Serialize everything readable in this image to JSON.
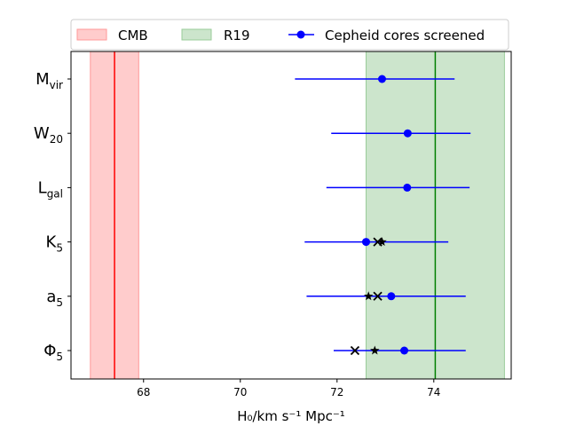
{
  "chart_data": {
    "type": "errorbar",
    "xlabel": "H₀/km s⁻¹ Mpc⁻¹",
    "ylabel": "",
    "xlim": [
      66.5,
      75.6
    ],
    "xticks": [
      68,
      70,
      72,
      74
    ],
    "categories": [
      {
        "base": "M",
        "sub": "vir"
      },
      {
        "base": "W",
        "sub": "20"
      },
      {
        "base": "L",
        "sub": "gal"
      },
      {
        "base": "K",
        "sub": "5"
      },
      {
        "base": "a",
        "sub": "5"
      },
      {
        "base": "Φ",
        "sub": "5"
      }
    ],
    "bands": [
      {
        "name": "CMB",
        "center": 67.4,
        "lo": 66.9,
        "hi": 67.9,
        "fill": "#ffcccc",
        "edge": "#ff9999",
        "line": "#ff0000"
      },
      {
        "name": "R19",
        "center": 74.03,
        "lo": 72.6,
        "hi": 75.46,
        "fill": "#cce5cc",
        "edge": "#99cc99",
        "line": "#008000"
      }
    ],
    "series": [
      {
        "name": "Cepheid cores screened",
        "color": "#0000ff",
        "points": [
          {
            "category": "Mvir",
            "value": 72.93,
            "lo": 71.13,
            "hi": 74.43
          },
          {
            "category": "W20",
            "value": 73.46,
            "lo": 71.88,
            "hi": 74.76
          },
          {
            "category": "Lgal",
            "value": 73.45,
            "lo": 71.78,
            "hi": 74.74
          },
          {
            "category": "K5",
            "value": 72.6,
            "lo": 71.33,
            "hi": 74.3
          },
          {
            "category": "a5",
            "value": 73.12,
            "lo": 71.37,
            "hi": 74.66
          },
          {
            "category": "Phi5",
            "value": 73.39,
            "lo": 71.93,
            "hi": 74.66
          }
        ]
      },
      {
        "name": "cross markers",
        "marker": "x",
        "color": "#000000",
        "points": [
          {
            "category": "K5",
            "value": 72.84
          },
          {
            "category": "a5",
            "value": 72.84
          },
          {
            "category": "Phi5",
            "value": 72.37
          }
        ]
      },
      {
        "name": "star markers",
        "marker": "*",
        "color": "#000000",
        "points": [
          {
            "category": "K5",
            "value": 72.93
          },
          {
            "category": "a5",
            "value": 72.65
          },
          {
            "category": "Phi5",
            "value": 72.78
          }
        ]
      }
    ],
    "legend": {
      "placement": "top",
      "entries": [
        "CMB",
        "R19",
        "Cepheid cores screened"
      ]
    }
  }
}
